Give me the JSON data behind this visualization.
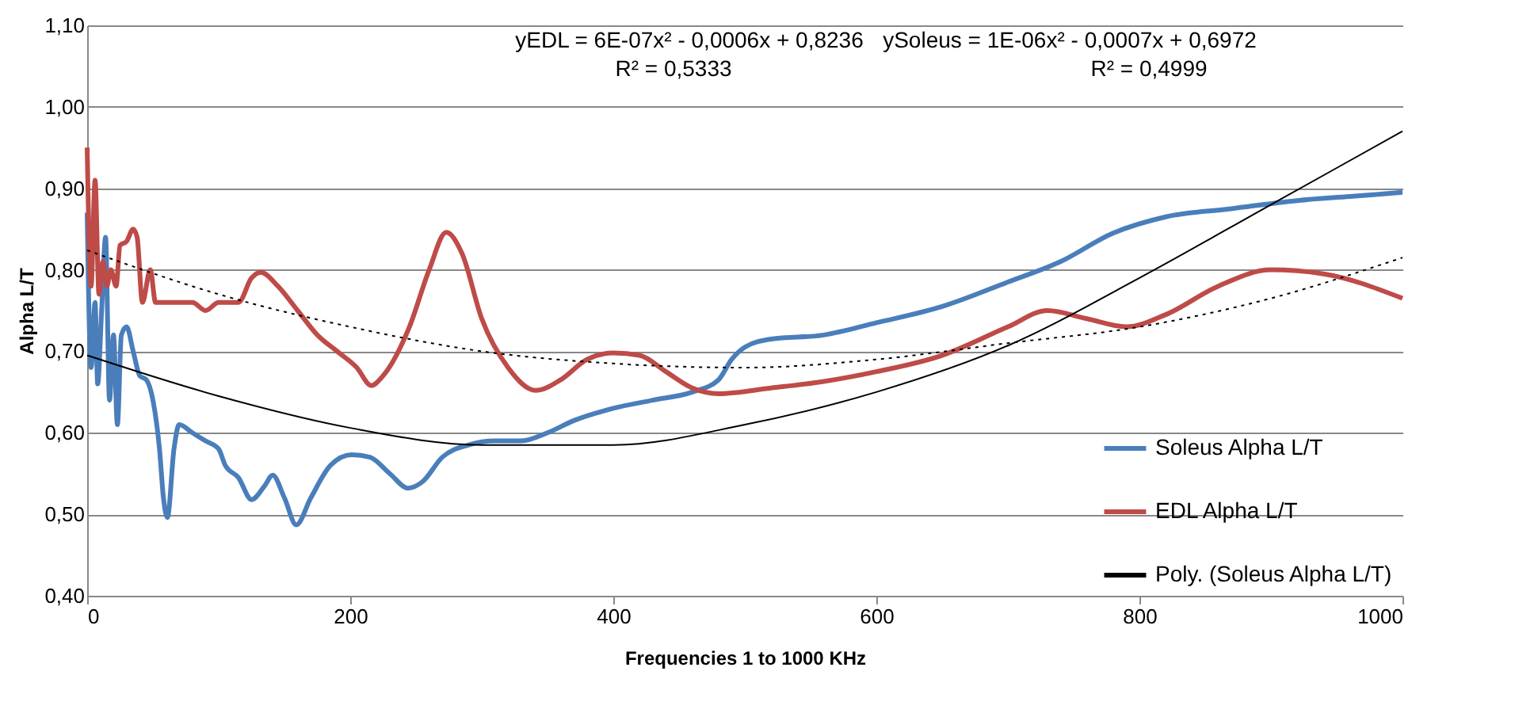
{
  "chart_data": {
    "type": "line",
    "xlabel": "Frequencies 1 to 1000 KHz",
    "ylabel": "Alpha L/T",
    "xlim": [
      0,
      1000
    ],
    "xticks": [
      0,
      200,
      400,
      600,
      800,
      1000
    ],
    "ylim": [
      0.4,
      1.1
    ],
    "yticks": [
      {
        "value": 0.4,
        "label": "0,40"
      },
      {
        "value": 0.5,
        "label": "0,50"
      },
      {
        "value": 0.6,
        "label": "0,60"
      },
      {
        "value": 0.7,
        "label": "0,70"
      },
      {
        "value": 0.8,
        "label": "0,80"
      },
      {
        "value": 0.9,
        "label": "0,90"
      },
      {
        "value": 1.0,
        "label": "1,00"
      },
      {
        "value": 1.1,
        "label": "1,10"
      }
    ],
    "grid": "y",
    "legend": "bottom right",
    "annotations": [
      "yEDL = 6E-07x² - 0,0006x + 0,8236",
      "R² = 0,5333",
      "ySoleus = 1E-06x² - 0,0007x + 0,6972",
      "R² = 0,4999"
    ],
    "series": [
      {
        "name": "Soleus Alpha L/T",
        "color": "#4a7ebb",
        "line_style": "solid",
        "x": [
          0,
          3,
          6,
          8,
          11,
          14,
          17,
          20,
          23,
          26,
          30,
          35,
          40,
          45,
          50,
          55,
          58,
          61,
          66,
          70,
          80,
          90,
          100,
          105,
          115,
          125,
          135,
          141,
          150,
          159,
          170,
          185,
          201,
          215,
          230,
          244,
          255,
          270,
          290,
          310,
          330,
          350,
          370,
          400,
          430,
          460,
          480,
          490,
          500,
          520,
          560,
          600,
          650,
          700,
          740,
          780,
          820,
          870,
          920,
          960,
          1000
        ],
        "values": [
          0.87,
          0.68,
          0.76,
          0.66,
          0.75,
          0.84,
          0.64,
          0.72,
          0.61,
          0.72,
          0.73,
          0.7,
          0.67,
          0.665,
          0.64,
          0.58,
          0.52,
          0.496,
          0.58,
          0.61,
          0.6,
          0.59,
          0.58,
          0.56,
          0.545,
          0.518,
          0.535,
          0.548,
          0.52,
          0.487,
          0.52,
          0.56,
          0.573,
          0.57,
          0.55,
          0.532,
          0.54,
          0.57,
          0.585,
          0.59,
          0.59,
          0.6,
          0.615,
          0.63,
          0.64,
          0.65,
          0.665,
          0.69,
          0.705,
          0.715,
          0.72,
          0.735,
          0.755,
          0.785,
          0.81,
          0.845,
          0.865,
          0.875,
          0.885,
          0.89,
          0.895
        ]
      },
      {
        "name": "EDL Alpha L/T",
        "color": "#be4b48",
        "line_style": "solid",
        "x": [
          0,
          3,
          6,
          9,
          12,
          15,
          18,
          22,
          25,
          30,
          35,
          38,
          42,
          48,
          52,
          60,
          80,
          90,
          100,
          115,
          125,
          132,
          145,
          160,
          175,
          190,
          205,
          216,
          225,
          245,
          260,
          273,
          285,
          300,
          320,
          341,
          360,
          380,
          400,
          420,
          440,
          460,
          480,
          520,
          560,
          600,
          650,
          700,
          730,
          760,
          790,
          820,
          860,
          900,
          940,
          1000
        ],
        "values": [
          0.95,
          0.78,
          0.91,
          0.77,
          0.81,
          0.78,
          0.8,
          0.78,
          0.83,
          0.835,
          0.85,
          0.84,
          0.76,
          0.8,
          0.76,
          0.76,
          0.76,
          0.75,
          0.76,
          0.76,
          0.79,
          0.797,
          0.78,
          0.75,
          0.72,
          0.7,
          0.68,
          0.658,
          0.67,
          0.73,
          0.8,
          0.846,
          0.82,
          0.74,
          0.68,
          0.652,
          0.665,
          0.69,
          0.698,
          0.695,
          0.675,
          0.655,
          0.648,
          0.655,
          0.663,
          0.675,
          0.695,
          0.73,
          0.75,
          0.74,
          0.73,
          0.745,
          0.78,
          0.8,
          0.795,
          0.765
        ]
      },
      {
        "name": "Poly. (Soleus Alpha L/T)",
        "color": "#000000",
        "line_style": "solid",
        "x": [
          0,
          100,
          200,
          300,
          400,
          500,
          600,
          700,
          800,
          900,
          1000
        ],
        "values": [
          0.695,
          0.645,
          0.606,
          0.585,
          0.585,
          0.61,
          0.65,
          0.707,
          0.79,
          0.88,
          0.97
        ]
      },
      {
        "color": "#000000",
        "line_style": "dotted",
        "x": [
          0,
          100,
          200,
          300,
          400,
          500,
          600,
          700,
          800,
          900,
          1000
        ],
        "values": [
          0.824,
          0.77,
          0.73,
          0.7,
          0.685,
          0.68,
          0.69,
          0.71,
          0.73,
          0.765,
          0.815
        ]
      }
    ]
  }
}
